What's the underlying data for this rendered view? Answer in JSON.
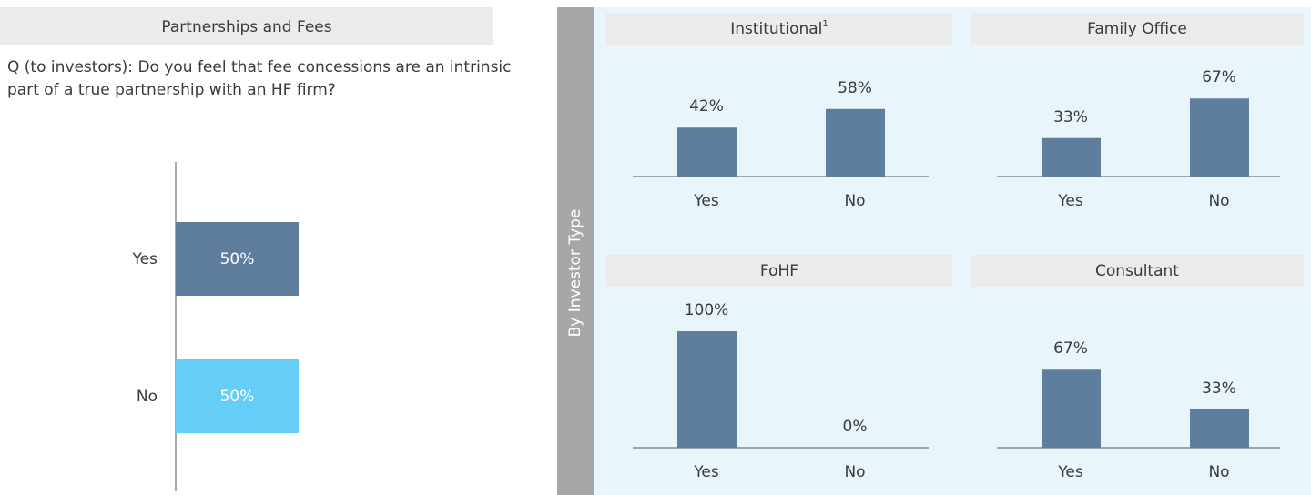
{
  "group_label": "By Investor Type",
  "chart_data": [
    {
      "type": "hbar",
      "title": "Partnerships and Fees",
      "subtitle": "Q (to investors): Do you feel that fee concessions are an intrinsic part of a true partnership with an HF firm?",
      "categories": [
        "Yes",
        "No"
      ],
      "values": [
        50,
        50
      ],
      "value_labels": [
        "50%",
        "50%"
      ],
      "colors": [
        "#5f7e9d",
        "#66cef6"
      ],
      "xlim": [
        0,
        100
      ]
    },
    {
      "type": "bar",
      "title": "Institutional",
      "footnote_mark": "1",
      "categories": [
        "Yes",
        "No"
      ],
      "values": [
        42,
        58
      ],
      "value_labels": [
        "42%",
        "58%"
      ],
      "color": "#5f7e9d",
      "ylim": [
        0,
        100
      ]
    },
    {
      "type": "bar",
      "title": "Family Office",
      "categories": [
        "Yes",
        "No"
      ],
      "values": [
        33,
        67
      ],
      "value_labels": [
        "33%",
        "67%"
      ],
      "color": "#5f7e9d",
      "ylim": [
        0,
        100
      ]
    },
    {
      "type": "bar",
      "title": "FoHF",
      "categories": [
        "Yes",
        "No"
      ],
      "values": [
        100,
        0
      ],
      "value_labels": [
        "100%",
        "0%"
      ],
      "color": "#5f7e9d",
      "ylim": [
        0,
        100
      ]
    },
    {
      "type": "bar",
      "title": "Consultant",
      "categories": [
        "Yes",
        "No"
      ],
      "values": [
        67,
        33
      ],
      "value_labels": [
        "67%",
        "33%"
      ],
      "color": "#5f7e9d",
      "ylim": [
        0,
        100
      ]
    }
  ]
}
